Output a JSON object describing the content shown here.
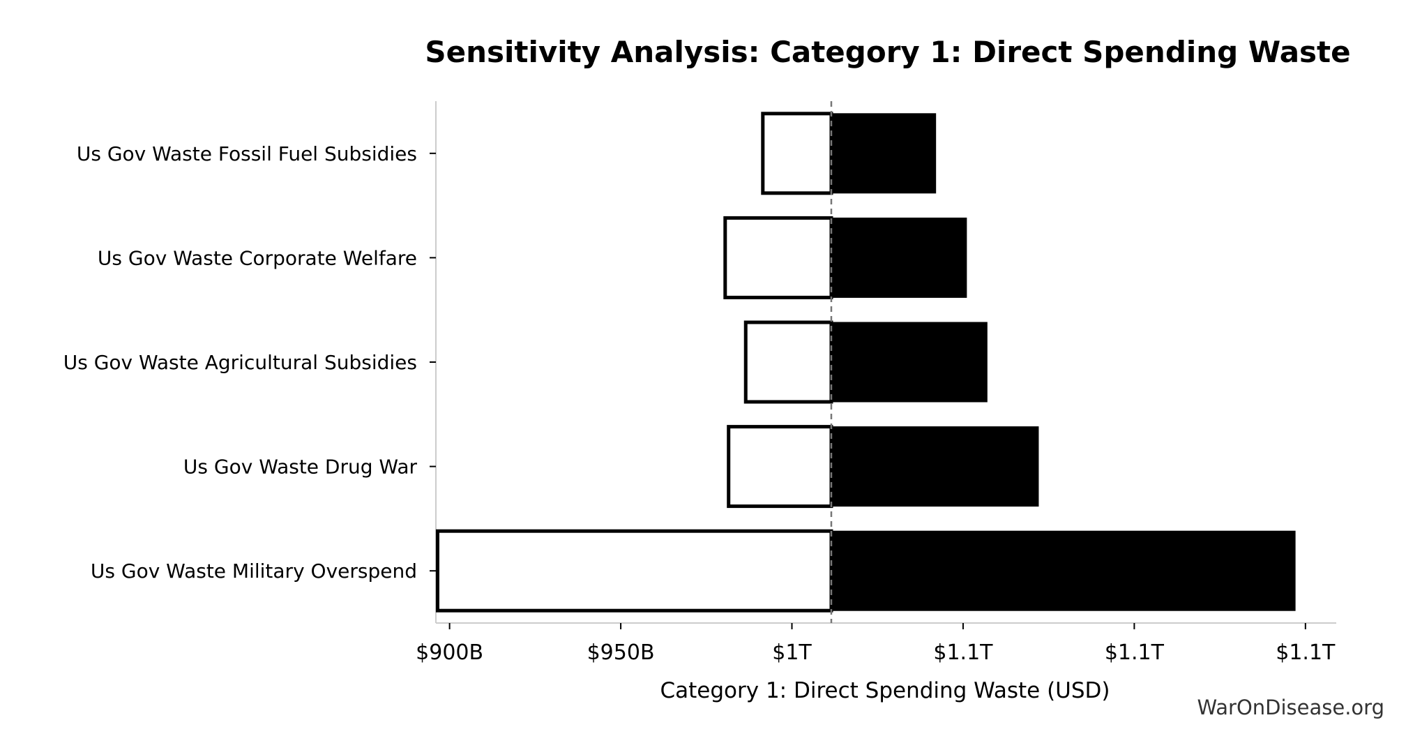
{
  "chart_data": {
    "type": "bar",
    "subtype": "tornado",
    "title": "Sensitivity Analysis: Category 1: Direct Spending Waste",
    "xlabel": "Category 1: Direct Spending Waste (USD)",
    "ylabel": "",
    "baseline": 1011.5,
    "xlim": [
      896,
      1159
    ],
    "x_ticks": [
      {
        "value": 900,
        "label": "$900B"
      },
      {
        "value": 950,
        "label": "$950B"
      },
      {
        "value": 1000,
        "label": "$1T"
      },
      {
        "value": 1050,
        "label": "$1.1T"
      },
      {
        "value": 1100,
        "label": "$1.1T"
      },
      {
        "value": 1150,
        "label": "$1.1T"
      }
    ],
    "categories": [
      "Us Gov Waste Fossil Fuel Subsidies",
      "Us Gov Waste Corporate Welfare",
      "Us Gov Waste Agricultural Subsidies",
      "Us Gov Waste Drug War",
      "Us Gov Waste Military Overspend"
    ],
    "series": [
      {
        "values": [
          991.5,
          980.5,
          986.5,
          981.5,
          896.5
        ],
        "style": "outlined",
        "color": "#ffffff"
      },
      {
        "values": [
          1042,
          1051,
          1057,
          1072,
          1147
        ],
        "style": "filled",
        "color": "#000000"
      }
    ],
    "grid": false,
    "legend": "none"
  },
  "watermark": "WarOnDisease.org"
}
